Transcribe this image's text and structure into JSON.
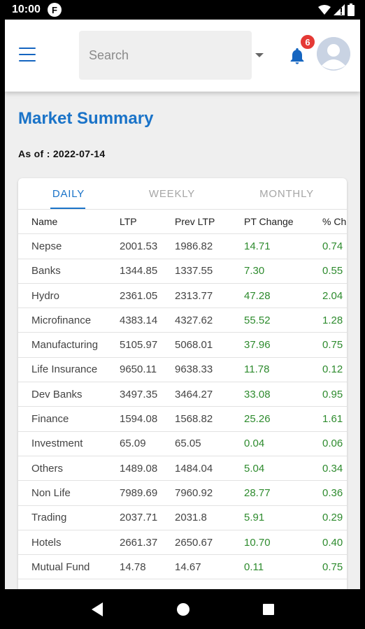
{
  "status_bar": {
    "time": "10:00",
    "app_icon_letter": "F",
    "icons": [
      "wifi-icon",
      "signal-icon",
      "battery-icon"
    ]
  },
  "header": {
    "menu_icon": "menu-icon",
    "search": {
      "placeholder": "Search",
      "value": ""
    },
    "notification_count": "6",
    "bell_icon": "bell-icon",
    "avatar_icon": "avatar-icon"
  },
  "page": {
    "title": "Market Summary",
    "as_of": "As of : 2022-07-14"
  },
  "tabs": [
    {
      "label": "DAILY",
      "active": true
    },
    {
      "label": "WEEKLY",
      "active": false
    },
    {
      "label": "MONTHLY",
      "active": false
    }
  ],
  "table": {
    "headers": [
      "Name",
      "LTP",
      "Prev LTP",
      "PT Change",
      "% Ch"
    ],
    "rows": [
      [
        "Nepse",
        "2001.53",
        "1986.82",
        "14.71",
        "0.74"
      ],
      [
        "Banks",
        "1344.85",
        "1337.55",
        "7.30",
        "0.55"
      ],
      [
        "Hydro",
        "2361.05",
        "2313.77",
        "47.28",
        "2.04"
      ],
      [
        "Microfinance",
        "4383.14",
        "4327.62",
        "55.52",
        "1.28"
      ],
      [
        "Manufacturing",
        "5105.97",
        "5068.01",
        "37.96",
        "0.75"
      ],
      [
        "Life Insurance",
        "9650.11",
        "9638.33",
        "11.78",
        "0.12"
      ],
      [
        "Dev Banks",
        "3497.35",
        "3464.27",
        "33.08",
        "0.95"
      ],
      [
        "Finance",
        "1594.08",
        "1568.82",
        "25.26",
        "1.61"
      ],
      [
        "Investment",
        "65.09",
        "65.05",
        "0.04",
        "0.06"
      ],
      [
        "Others",
        "1489.08",
        "1484.04",
        "5.04",
        "0.34"
      ],
      [
        "Non Life",
        "7989.69",
        "7960.92",
        "28.77",
        "0.36"
      ],
      [
        "Trading",
        "2037.71",
        "2031.8",
        "5.91",
        "0.29"
      ],
      [
        "Hotels",
        "2661.37",
        "2650.67",
        "10.70",
        "0.40"
      ],
      [
        "Mutual Fund",
        "14.78",
        "14.67",
        "0.11",
        "0.75"
      ]
    ]
  },
  "nav_bar": {
    "icons": [
      "back-icon",
      "home-icon",
      "recents-icon"
    ]
  },
  "colors": {
    "accent": "#1a73c8",
    "positive": "#2e8b2e",
    "badge": "#e53935"
  }
}
